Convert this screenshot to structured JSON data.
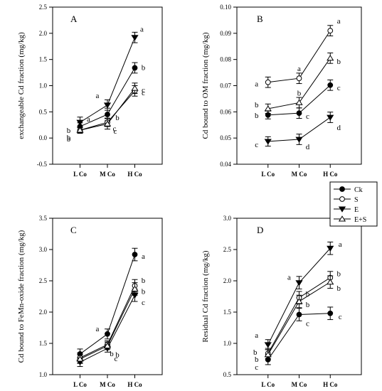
{
  "legend": {
    "entries": [
      {
        "name": "Ck",
        "marker": "filled-circle"
      },
      {
        "name": "S",
        "marker": "open-circle"
      },
      {
        "name": "E",
        "marker": "filled-triangle-down"
      },
      {
        "name": "E+S",
        "marker": "open-triangle-up"
      }
    ]
  },
  "chart_data": [
    {
      "type": "line",
      "panel": "A",
      "ylabel": "exchangeable Cd fraction (mg/kg)",
      "categories": [
        "L Co",
        "M Co",
        "H Co"
      ],
      "ylim": [
        -0.5,
        2.5
      ],
      "yticks": [
        "-0.5",
        "0.0",
        "0.5",
        "1.0",
        "1.5",
        "2.0",
        "2.5"
      ],
      "series": [
        {
          "name": "Ck",
          "values": [
            0.22,
            0.45,
            1.34
          ],
          "errors": [
            0.07,
            0.12,
            0.1
          ],
          "letters": [
            "b",
            "b",
            "b"
          ]
        },
        {
          "name": "S",
          "values": [
            0.15,
            0.3,
            0.9
          ],
          "errors": [
            0.06,
            0.08,
            0.1
          ],
          "letters": [
            "b",
            "c",
            "c"
          ]
        },
        {
          "name": "E",
          "values": [
            0.3,
            0.63,
            1.92
          ],
          "errors": [
            0.1,
            0.1,
            0.1
          ],
          "letters": [
            "a",
            "a",
            "a"
          ]
        },
        {
          "name": "E+S",
          "values": [
            0.15,
            0.27,
            0.95
          ],
          "errors": [
            0.05,
            0.1,
            0.1
          ],
          "letters": [
            "b",
            "c",
            "c"
          ]
        }
      ]
    },
    {
      "type": "line",
      "panel": "B",
      "ylabel": "Cd bound to OM fraction (mg/kg)",
      "categories": [
        "L Co",
        "M Co",
        "H Co"
      ],
      "ylim": [
        0.04,
        0.1
      ],
      "yticks": [
        "0.04",
        "0.05",
        "0.06",
        "0.07",
        "0.08",
        "0.09",
        "0.10"
      ],
      "series": [
        {
          "name": "Ck",
          "values": [
            0.0588,
            0.0595,
            0.0702
          ],
          "errors": [
            0.0015,
            0.002,
            0.002
          ],
          "letters": [
            "b",
            "c",
            "c"
          ]
        },
        {
          "name": "S",
          "values": [
            0.0713,
            0.0728,
            0.091
          ],
          "errors": [
            0.002,
            0.002,
            0.002
          ],
          "letters": [
            "a",
            "a",
            "a"
          ]
        },
        {
          "name": "E",
          "values": [
            0.0487,
            0.0495,
            0.0579
          ],
          "errors": [
            0.0018,
            0.002,
            0.002
          ],
          "letters": [
            "c",
            "d",
            "d"
          ]
        },
        {
          "name": "E+S",
          "values": [
            0.0612,
            0.0635,
            0.0805
          ],
          "errors": [
            0.0018,
            0.002,
            0.002
          ],
          "letters": [
            "b",
            "b",
            "b"
          ]
        }
      ]
    },
    {
      "type": "line",
      "panel": "C",
      "ylabel": "Cd bound to FeMn-oxide fraction (mg/kg)",
      "categories": [
        "L Co",
        "M Co",
        "H Co"
      ],
      "ylim": [
        1.0,
        3.5
      ],
      "yticks": [
        "1.0",
        "1.5",
        "2.0",
        "2.5",
        "3.0",
        "3.5"
      ],
      "series": [
        {
          "name": "Ck",
          "values": [
            1.33,
            1.65,
            2.92
          ],
          "errors": [
            0.08,
            0.08,
            0.1
          ],
          "letters": [
            "",
            "a",
            "a"
          ]
        },
        {
          "name": "S",
          "values": [
            1.27,
            1.48,
            2.42
          ],
          "errors": [
            0.08,
            0.06,
            0.1
          ],
          "letters": [
            "",
            "b",
            "b"
          ]
        },
        {
          "name": "E",
          "values": [
            1.2,
            1.42,
            2.27
          ],
          "errors": [
            0.07,
            0.06,
            0.1
          ],
          "letters": [
            "",
            "c",
            "c"
          ]
        },
        {
          "name": "E+S",
          "values": [
            1.25,
            1.46,
            2.37
          ],
          "errors": [
            0.07,
            0.06,
            0.1
          ],
          "letters": [
            "",
            "b",
            "b"
          ]
        }
      ]
    },
    {
      "type": "line",
      "panel": "D",
      "ylabel": "Residual Cd fraction (mg/kg)",
      "categories": [
        "L Co",
        "M Co",
        "H Co"
      ],
      "ylim": [
        0.5,
        3.0
      ],
      "yticks": [
        "0.5",
        "1.0",
        "1.5",
        "2.0",
        "2.5",
        "3.0"
      ],
      "series": [
        {
          "name": "Ck",
          "values": [
            0.74,
            1.46,
            1.48
          ],
          "errors": [
            0.08,
            0.1,
            0.1
          ],
          "letters": [
            "c",
            "c",
            "c"
          ]
        },
        {
          "name": "S",
          "values": [
            0.84,
            1.73,
            2.05
          ],
          "errors": [
            0.08,
            0.1,
            0.1
          ],
          "letters": [
            "b",
            "b",
            "b"
          ]
        },
        {
          "name": "E",
          "values": [
            0.98,
            1.97,
            2.52
          ],
          "errors": [
            0.08,
            0.1,
            0.1
          ],
          "letters": [
            "a",
            "a",
            "a"
          ]
        },
        {
          "name": "E+S",
          "values": [
            0.82,
            1.67,
            1.98
          ],
          "errors": [
            0.08,
            0.1,
            0.1
          ],
          "letters": [
            "b",
            "b",
            "b"
          ]
        }
      ]
    }
  ]
}
